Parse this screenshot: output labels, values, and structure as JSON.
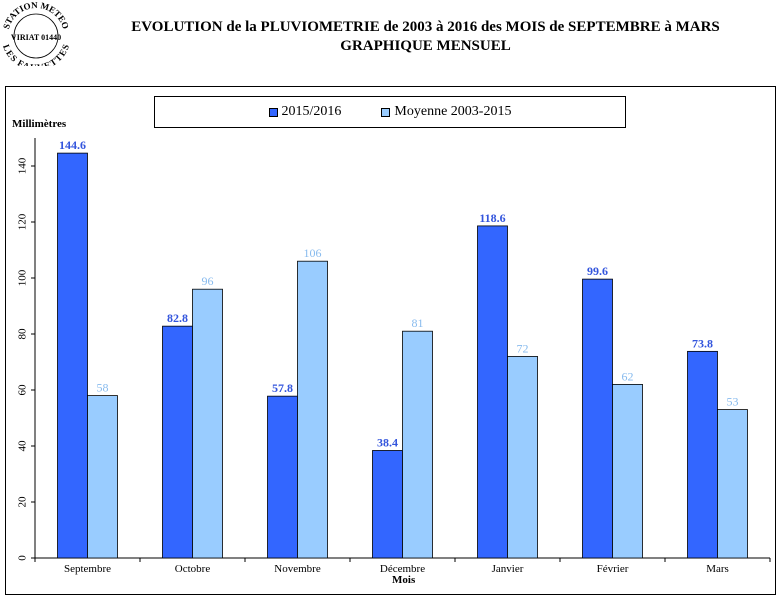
{
  "logo": {
    "top_text": "STATION METEO",
    "middle_text": "VIRIAT 01440",
    "bottom_text": "LES FAUVETTES"
  },
  "chart_data": {
    "type": "bar",
    "title": "EVOLUTION de la PLUVIOMETRIE de 2003 à 2016 des MOIS de SEPTEMBRE à MARS",
    "subtitle": "GRAPHIQUE MENSUEL",
    "ylabel": "Millimètres",
    "xlabel": "Mois",
    "ylim": [
      0,
      150
    ],
    "yticks": [
      0,
      20,
      40,
      60,
      80,
      100,
      120,
      140
    ],
    "categories": [
      "Septembre",
      "Octobre",
      "Novembre",
      "Décembre",
      "Janvier",
      "Février",
      "Mars"
    ],
    "series": [
      {
        "name": "2015/2016",
        "color": "#3366ff",
        "label_color": "#3355dd",
        "values": [
          144.6,
          82.8,
          57.8,
          38.4,
          118.6,
          99.6,
          73.8
        ],
        "labels": [
          "144.6",
          "82.8",
          "57.8",
          "38.4",
          "118.6",
          "99.6",
          "73.8"
        ]
      },
      {
        "name": "Moyenne 2003-2015",
        "color": "#99ccff",
        "label_color": "#88bbee",
        "values": [
          58,
          96,
          106,
          81,
          72,
          62,
          53
        ],
        "labels": [
          "58",
          "96",
          "106",
          "81",
          "72",
          "62",
          "53"
        ]
      }
    ],
    "grid": false,
    "legend": "top"
  }
}
